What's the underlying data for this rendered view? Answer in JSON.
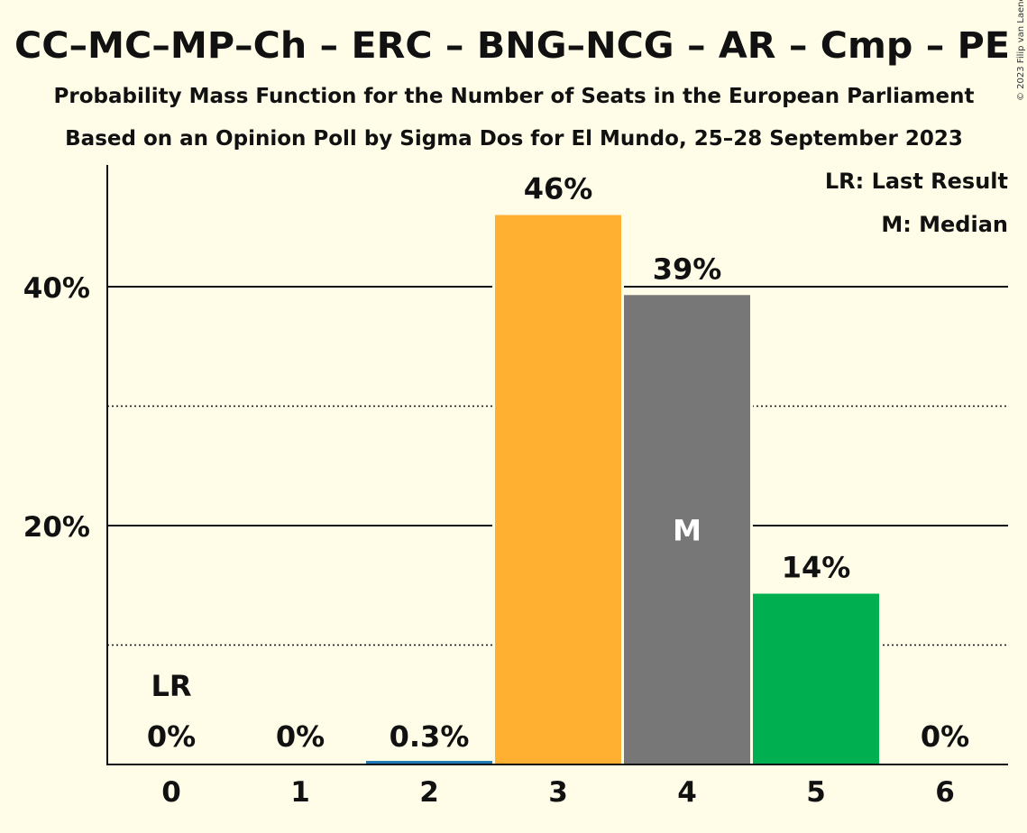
{
  "title": "CC–MC–MP–Ch – ERC – BNG–NCG – AR – Cmp – PE",
  "subtitle1": "Probability Mass Function for the Number of Seats in the European Parliament",
  "subtitle2": "Based on an Opinion Poll by Sigma Dos for El Mundo, 25–28 September 2023",
  "copyright": "© 2023 Filip van Laenen",
  "legend": {
    "last_result": "LR: Last Result",
    "median": "M: Median"
  },
  "chart_data": {
    "type": "bar",
    "categories": [
      "0",
      "1",
      "2",
      "3",
      "4",
      "5",
      "6"
    ],
    "values": [
      0,
      0,
      0.3,
      46,
      39.3,
      14.3,
      0
    ],
    "labels": [
      "0%",
      "0%",
      "0.3%",
      "46%",
      "39%",
      "14%",
      "0%"
    ],
    "colors": [
      "#888888",
      "#888888",
      "#1f77b4",
      "#ffb030",
      "#777777",
      "#00b050",
      "#888888"
    ],
    "ylim": [
      0,
      50
    ],
    "yticks": [
      {
        "value": 20,
        "label": "20%"
      },
      {
        "value": 40,
        "label": "40%"
      }
    ],
    "minor_gridlines": [
      10,
      30
    ],
    "last_result_index": 0,
    "last_result_marker": "LR",
    "median_index": 4,
    "median_marker": "M",
    "grid": true,
    "legend_position": "top-right"
  }
}
